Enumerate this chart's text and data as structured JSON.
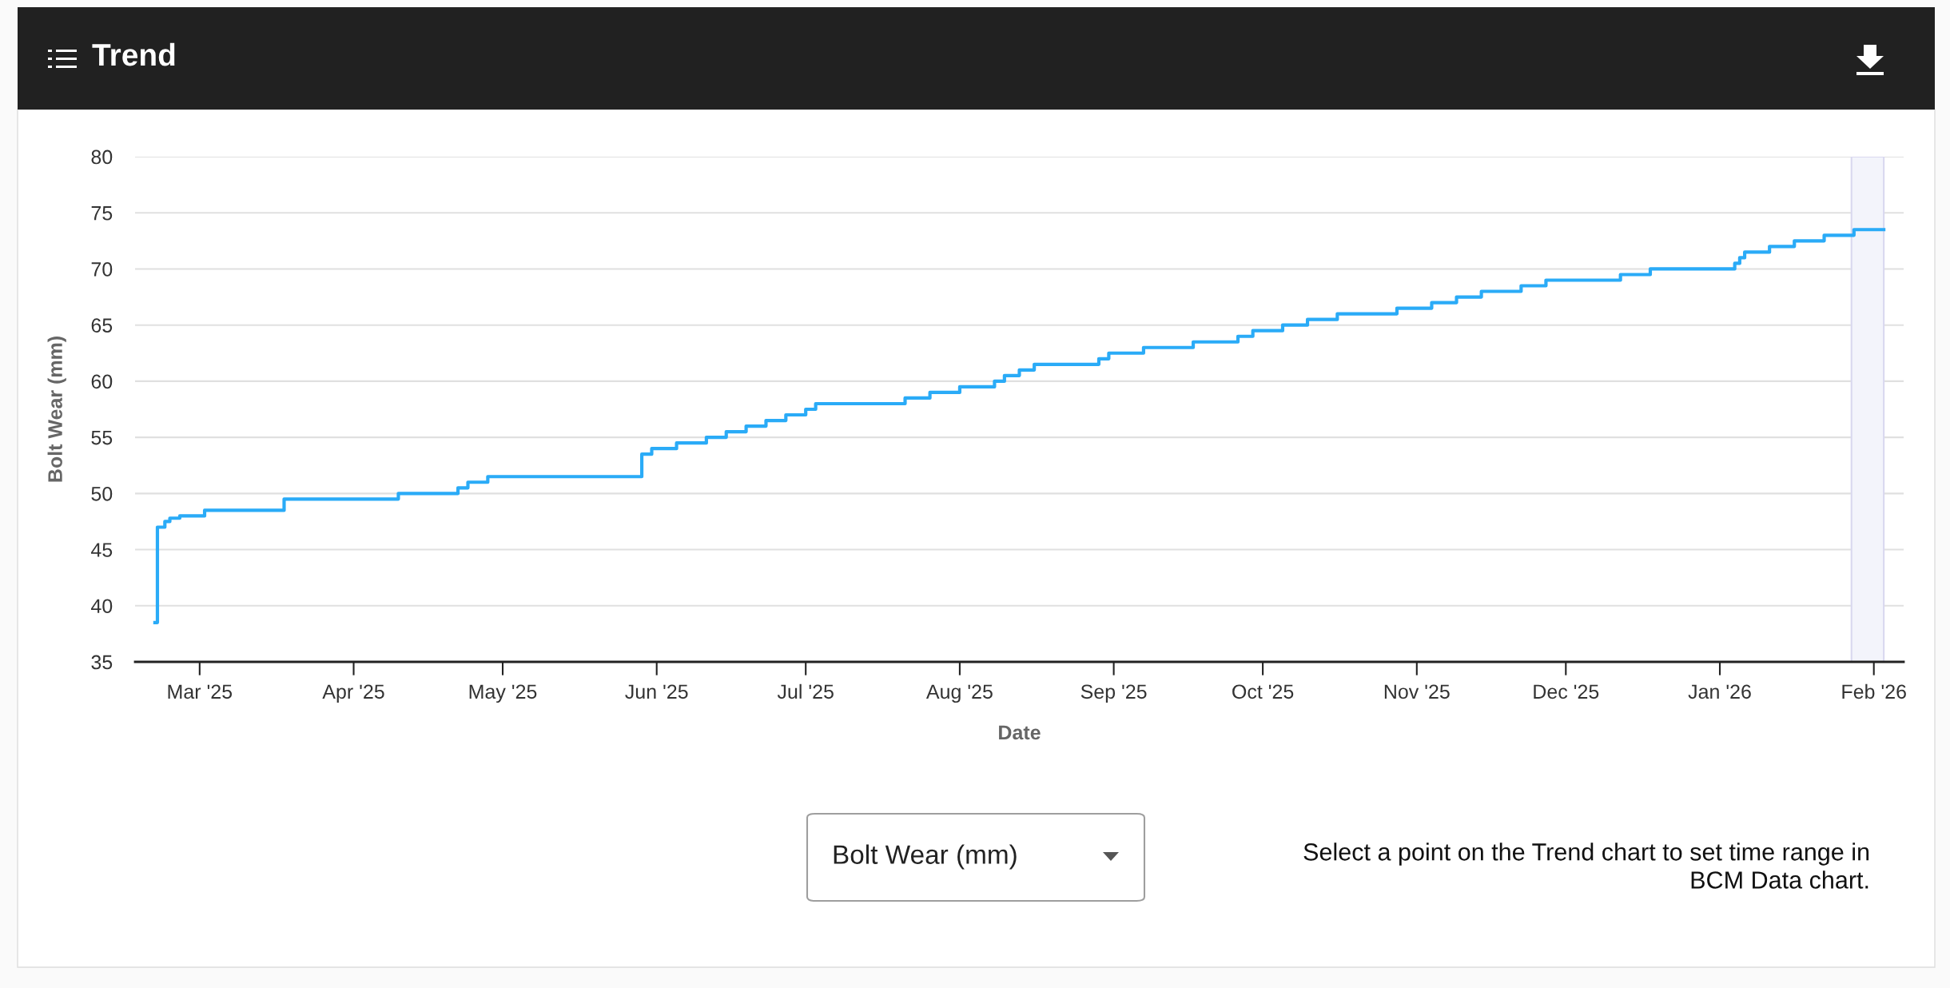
{
  "chart_data": {
    "type": "step",
    "title": "Trend",
    "xlabel": "Date",
    "ylabel": "Bolt Wear (mm)",
    "annotations": [
      "Bolt Wear (mm)",
      "Select a point on the Trend chart to set time range in\nBCM Data chart."
    ],
    "series": [
      {
        "color": "#2aabf7",
        "x": [
          "2025-02-20",
          "2025-02-20T12:00",
          "2025-02-22",
          "2025-02-23",
          "2025-02-25",
          "2025-03-02",
          "2025-03-18",
          "2025-04-10",
          "2025-04-22",
          "2025-04-24",
          "2025-04-28",
          "2025-05-29",
          "2025-05-31",
          "2025-06-05",
          "2025-06-11",
          "2025-06-15",
          "2025-06-19",
          "2025-06-23",
          "2025-06-27",
          "2025-07-01",
          "2025-07-03",
          "2025-07-21",
          "2025-07-26",
          "2025-08-01",
          "2025-08-08",
          "2025-08-10",
          "2025-08-13",
          "2025-08-16",
          "2025-08-29",
          "2025-08-31",
          "2025-09-07",
          "2025-09-17",
          "2025-09-26",
          "2025-09-29",
          "2025-10-05",
          "2025-10-10",
          "2025-10-16",
          "2025-10-28",
          "2025-11-04",
          "2025-11-09",
          "2025-11-14",
          "2025-11-22",
          "2025-11-27",
          "2025-12-12",
          "2025-12-18",
          "2026-01-04",
          "2026-01-05",
          "2026-01-06",
          "2026-01-11",
          "2026-01-16",
          "2026-01-22",
          "2026-01-28",
          "2026-02-03"
        ],
        "values": [
          38.5,
          47,
          47.5,
          47.8,
          48,
          48.5,
          49.5,
          50,
          50.5,
          51,
          51.5,
          53.5,
          54,
          54.5,
          55,
          55.5,
          56,
          56.5,
          57,
          57.5,
          58,
          58.5,
          59,
          59.5,
          60,
          60.5,
          61,
          61.5,
          62,
          62.5,
          63,
          63.5,
          64,
          64.5,
          65,
          65.5,
          66,
          66.5,
          67,
          67.5,
          68,
          68.5,
          69,
          69.5,
          70,
          70.5,
          71,
          71.5,
          72,
          72.5,
          73,
          73.5,
          73.5
        ]
      }
    ],
    "xlim": [
      "2025-02-16",
      "2026-02-07"
    ],
    "xticks": [
      {
        "value": "2025-03-01",
        "label": "Mar '25"
      },
      {
        "value": "2025-04-01",
        "label": "Apr '25"
      },
      {
        "value": "2025-05-01",
        "label": "May '25"
      },
      {
        "value": "2025-06-01",
        "label": "Jun '25"
      },
      {
        "value": "2025-07-01",
        "label": "Jul '25"
      },
      {
        "value": "2025-08-01",
        "label": "Aug '25"
      },
      {
        "value": "2025-09-01",
        "label": "Sep '25"
      },
      {
        "value": "2025-10-01",
        "label": "Oct '25"
      },
      {
        "value": "2025-11-01",
        "label": "Nov '25"
      },
      {
        "value": "2025-12-01",
        "label": "Dec '25"
      },
      {
        "value": "2026-01-01",
        "label": "Jan '26"
      },
      {
        "value": "2026-02-01",
        "label": "Feb '26"
      }
    ],
    "ylim": [
      35,
      80
    ],
    "yticks": [
      35,
      40,
      45,
      50,
      55,
      60,
      65,
      70,
      75,
      80
    ],
    "bands": [
      {
        "axis": "x",
        "from": "2026-01-27T12:00",
        "to": "2026-02-03",
        "color": "#f3f4fb"
      }
    ],
    "grid": "y",
    "line_style": "solid"
  }
}
